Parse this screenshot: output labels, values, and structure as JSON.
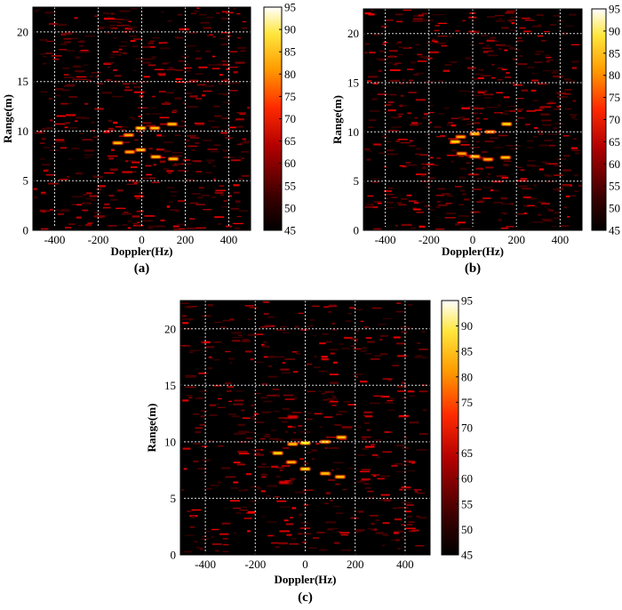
{
  "figure": {
    "panels": [
      "(a)",
      "(b)",
      "(c)"
    ]
  },
  "chart_data": [
    {
      "type": "heatmap",
      "panel_label": "(a)",
      "xlabel": "Doppler(Hz)",
      "ylabel": "Range(m)",
      "xlim": [
        -500,
        500
      ],
      "ylim": [
        0,
        22.5
      ],
      "xticks": [
        -400,
        -200,
        0,
        200,
        400
      ],
      "yticks": [
        0,
        5,
        10,
        15,
        20
      ],
      "grid": true,
      "colorbar": {
        "min": 45,
        "max": 95,
        "ticks": [
          45,
          50,
          55,
          60,
          65,
          70,
          75,
          80,
          85,
          90,
          95
        ]
      },
      "hotspots": [
        {
          "x": -110,
          "y": 8.8,
          "v": 80
        },
        {
          "x": -60,
          "y": 9.6,
          "v": 78
        },
        {
          "x": -5,
          "y": 10.3,
          "v": 82
        },
        {
          "x": 60,
          "y": 10.3,
          "v": 80
        },
        {
          "x": 140,
          "y": 10.7,
          "v": 80
        },
        {
          "x": -55,
          "y": 7.9,
          "v": 78
        },
        {
          "x": -5,
          "y": 8.1,
          "v": 80
        },
        {
          "x": 65,
          "y": 7.4,
          "v": 80
        },
        {
          "x": 145,
          "y": 7.2,
          "v": 80
        }
      ]
    },
    {
      "type": "heatmap",
      "panel_label": "(b)",
      "xlabel": "Doppler(Hz)",
      "ylabel": "Range(m)",
      "xlim": [
        -500,
        500
      ],
      "ylim": [
        0,
        22.5
      ],
      "xticks": [
        -400,
        -200,
        0,
        200,
        400
      ],
      "yticks": [
        0,
        5,
        10,
        15,
        20
      ],
      "grid": true,
      "colorbar": {
        "min": 45,
        "max": 95,
        "ticks": [
          45,
          50,
          55,
          60,
          65,
          70,
          75,
          80,
          85,
          90,
          95
        ]
      },
      "hotspots": [
        {
          "x": -80,
          "y": 9.0,
          "v": 82
        },
        {
          "x": -55,
          "y": 9.5,
          "v": 78
        },
        {
          "x": 10,
          "y": 9.8,
          "v": 80
        },
        {
          "x": 80,
          "y": 10.0,
          "v": 78
        },
        {
          "x": 155,
          "y": 10.8,
          "v": 82
        },
        {
          "x": -50,
          "y": 7.8,
          "v": 78
        },
        {
          "x": 10,
          "y": 7.5,
          "v": 80
        },
        {
          "x": 70,
          "y": 7.2,
          "v": 78
        },
        {
          "x": 150,
          "y": 7.4,
          "v": 80
        }
      ]
    },
    {
      "type": "heatmap",
      "panel_label": "(c)",
      "xlabel": "Doppler(Hz)",
      "ylabel": "Range(m)",
      "xlim": [
        -500,
        500
      ],
      "ylim": [
        0,
        22.5
      ],
      "xticks": [
        -400,
        -200,
        0,
        200,
        400
      ],
      "yticks": [
        0,
        5,
        10,
        15,
        20
      ],
      "grid": true,
      "colorbar": {
        "min": 45,
        "max": 95,
        "ticks": [
          45,
          50,
          55,
          60,
          65,
          70,
          75,
          80,
          85,
          90,
          95
        ]
      },
      "hotspots": [
        {
          "x": -110,
          "y": 9.0,
          "v": 82
        },
        {
          "x": -50,
          "y": 9.8,
          "v": 80
        },
        {
          "x": 0,
          "y": 9.9,
          "v": 84
        },
        {
          "x": 80,
          "y": 10.0,
          "v": 80
        },
        {
          "x": 145,
          "y": 10.4,
          "v": 80
        },
        {
          "x": -55,
          "y": 8.2,
          "v": 78
        },
        {
          "x": 0,
          "y": 7.6,
          "v": 82
        },
        {
          "x": 80,
          "y": 7.2,
          "v": 80
        },
        {
          "x": 140,
          "y": 6.9,
          "v": 80
        },
        {
          "x": -50,
          "y": 12.2,
          "v": 62
        },
        {
          "x": -85,
          "y": 6.4,
          "v": 62
        }
      ]
    }
  ]
}
